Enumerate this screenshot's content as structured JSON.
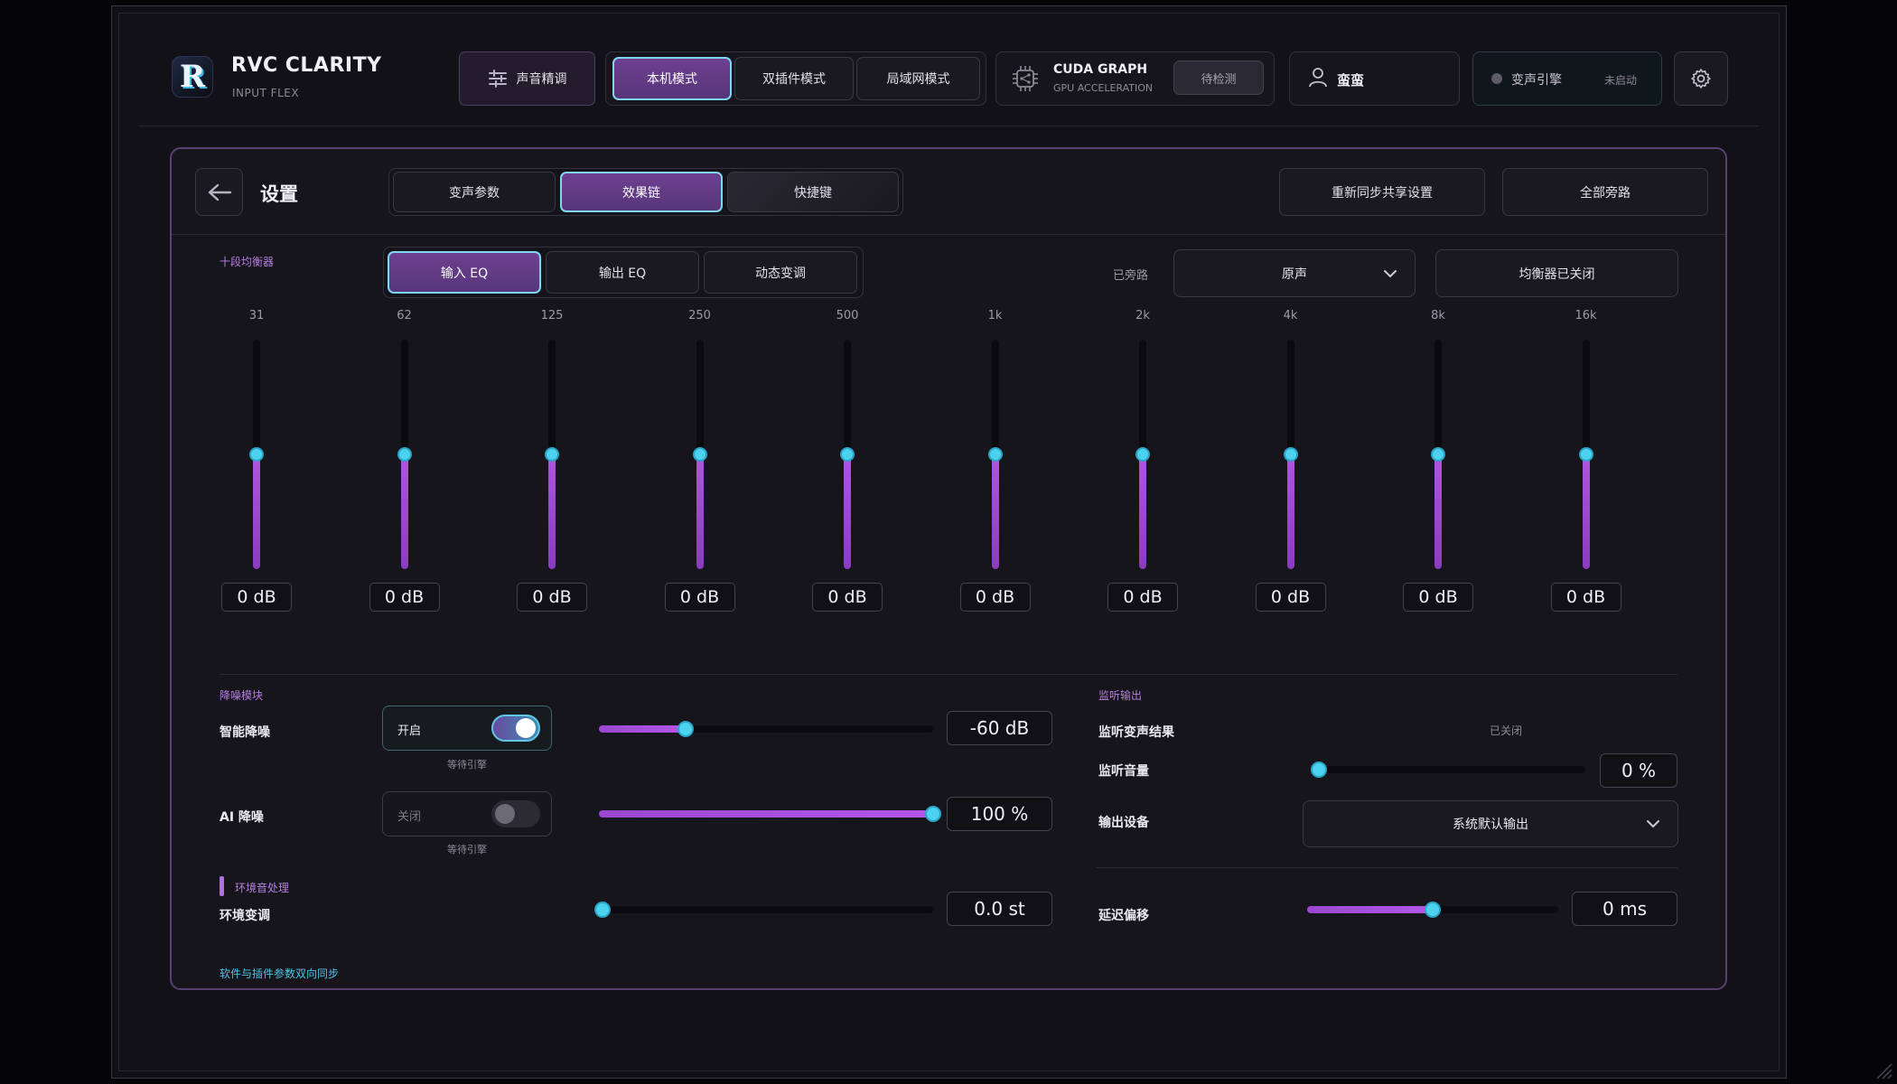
{
  "app": {
    "title": "RVC CLARITY",
    "subtitle": "INPUT FLEX",
    "logo_letter": "R"
  },
  "header": {
    "tune_label": "声音精调",
    "modes": [
      {
        "label": "本机模式",
        "active": true
      },
      {
        "label": "双插件模式",
        "active": false
      },
      {
        "label": "局域网模式",
        "active": false
      }
    ],
    "gpu": {
      "title": "CUDA GRAPH",
      "subtitle": "GPU ACCELERATION",
      "check_label": "待检测"
    },
    "user": {
      "name": "蛮蛮"
    },
    "engine": {
      "label": "变声引擎",
      "status": "未启动"
    }
  },
  "settings": {
    "title": "设置",
    "tabs": [
      {
        "label": "变声参数",
        "active": false
      },
      {
        "label": "效果链",
        "active": true
      },
      {
        "label": "快捷键",
        "active": false
      }
    ],
    "resync_label": "重新同步共享设置",
    "bypass_all_label": "全部旁路"
  },
  "eq": {
    "section_label": "十段均衡器",
    "subtabs": [
      {
        "label": "输入 EQ",
        "active": true
      },
      {
        "label": "输出 EQ",
        "active": false
      },
      {
        "label": "动态变调",
        "active": false
      }
    ],
    "bypass_label": "已旁路",
    "preset_value": "原声",
    "eq_state_label": "均衡器已关闭",
    "range_db": [
      -12,
      12
    ],
    "bands": [
      {
        "freq": "31",
        "gain": 0,
        "display": "0 dB"
      },
      {
        "freq": "62",
        "gain": 0,
        "display": "0 dB"
      },
      {
        "freq": "125",
        "gain": 0,
        "display": "0 dB"
      },
      {
        "freq": "250",
        "gain": 0,
        "display": "0 dB"
      },
      {
        "freq": "500",
        "gain": 0,
        "display": "0 dB"
      },
      {
        "freq": "1k",
        "gain": 0,
        "display": "0 dB"
      },
      {
        "freq": "2k",
        "gain": 0,
        "display": "0 dB"
      },
      {
        "freq": "4k",
        "gain": 0,
        "display": "0 dB"
      },
      {
        "freq": "8k",
        "gain": 0,
        "display": "0 dB"
      },
      {
        "freq": "16k",
        "gain": 0,
        "display": "0 dB"
      }
    ]
  },
  "noise": {
    "section_label": "降噪模块",
    "smart": {
      "label": "智能降噪",
      "state_label": "开启",
      "on": true,
      "wait_label": "等待引擎",
      "level": 0.26,
      "value_display": "-60 dB"
    },
    "ai": {
      "label": "AI 降噪",
      "state_label": "关闭",
      "on": false,
      "wait_label": "等待引擎",
      "level": 1.0,
      "value_display": "100 %"
    }
  },
  "monitor": {
    "section_label": "监听输出",
    "result_label": "监听变声结果",
    "result_state": "已关闭",
    "volume_label": "监听音量",
    "volume_level": 0.0,
    "volume_display": "0 %",
    "device_label": "输出设备",
    "device_value": "系统默认输出"
  },
  "ambient": {
    "section_label": "环境音处理",
    "pitch_label": "环境变调",
    "pitch_level": 0.0,
    "pitch_display": "0.0 st",
    "latency_label": "延迟偏移",
    "latency_level": 0.5,
    "latency_display": "0 ms"
  },
  "footer": {
    "sync_note": "软件与插件参数双向同步"
  },
  "colors": {
    "accent_purple": "#9a48d0",
    "accent_cyan": "#4cd2ef",
    "panel_border": "#5a3f72"
  }
}
